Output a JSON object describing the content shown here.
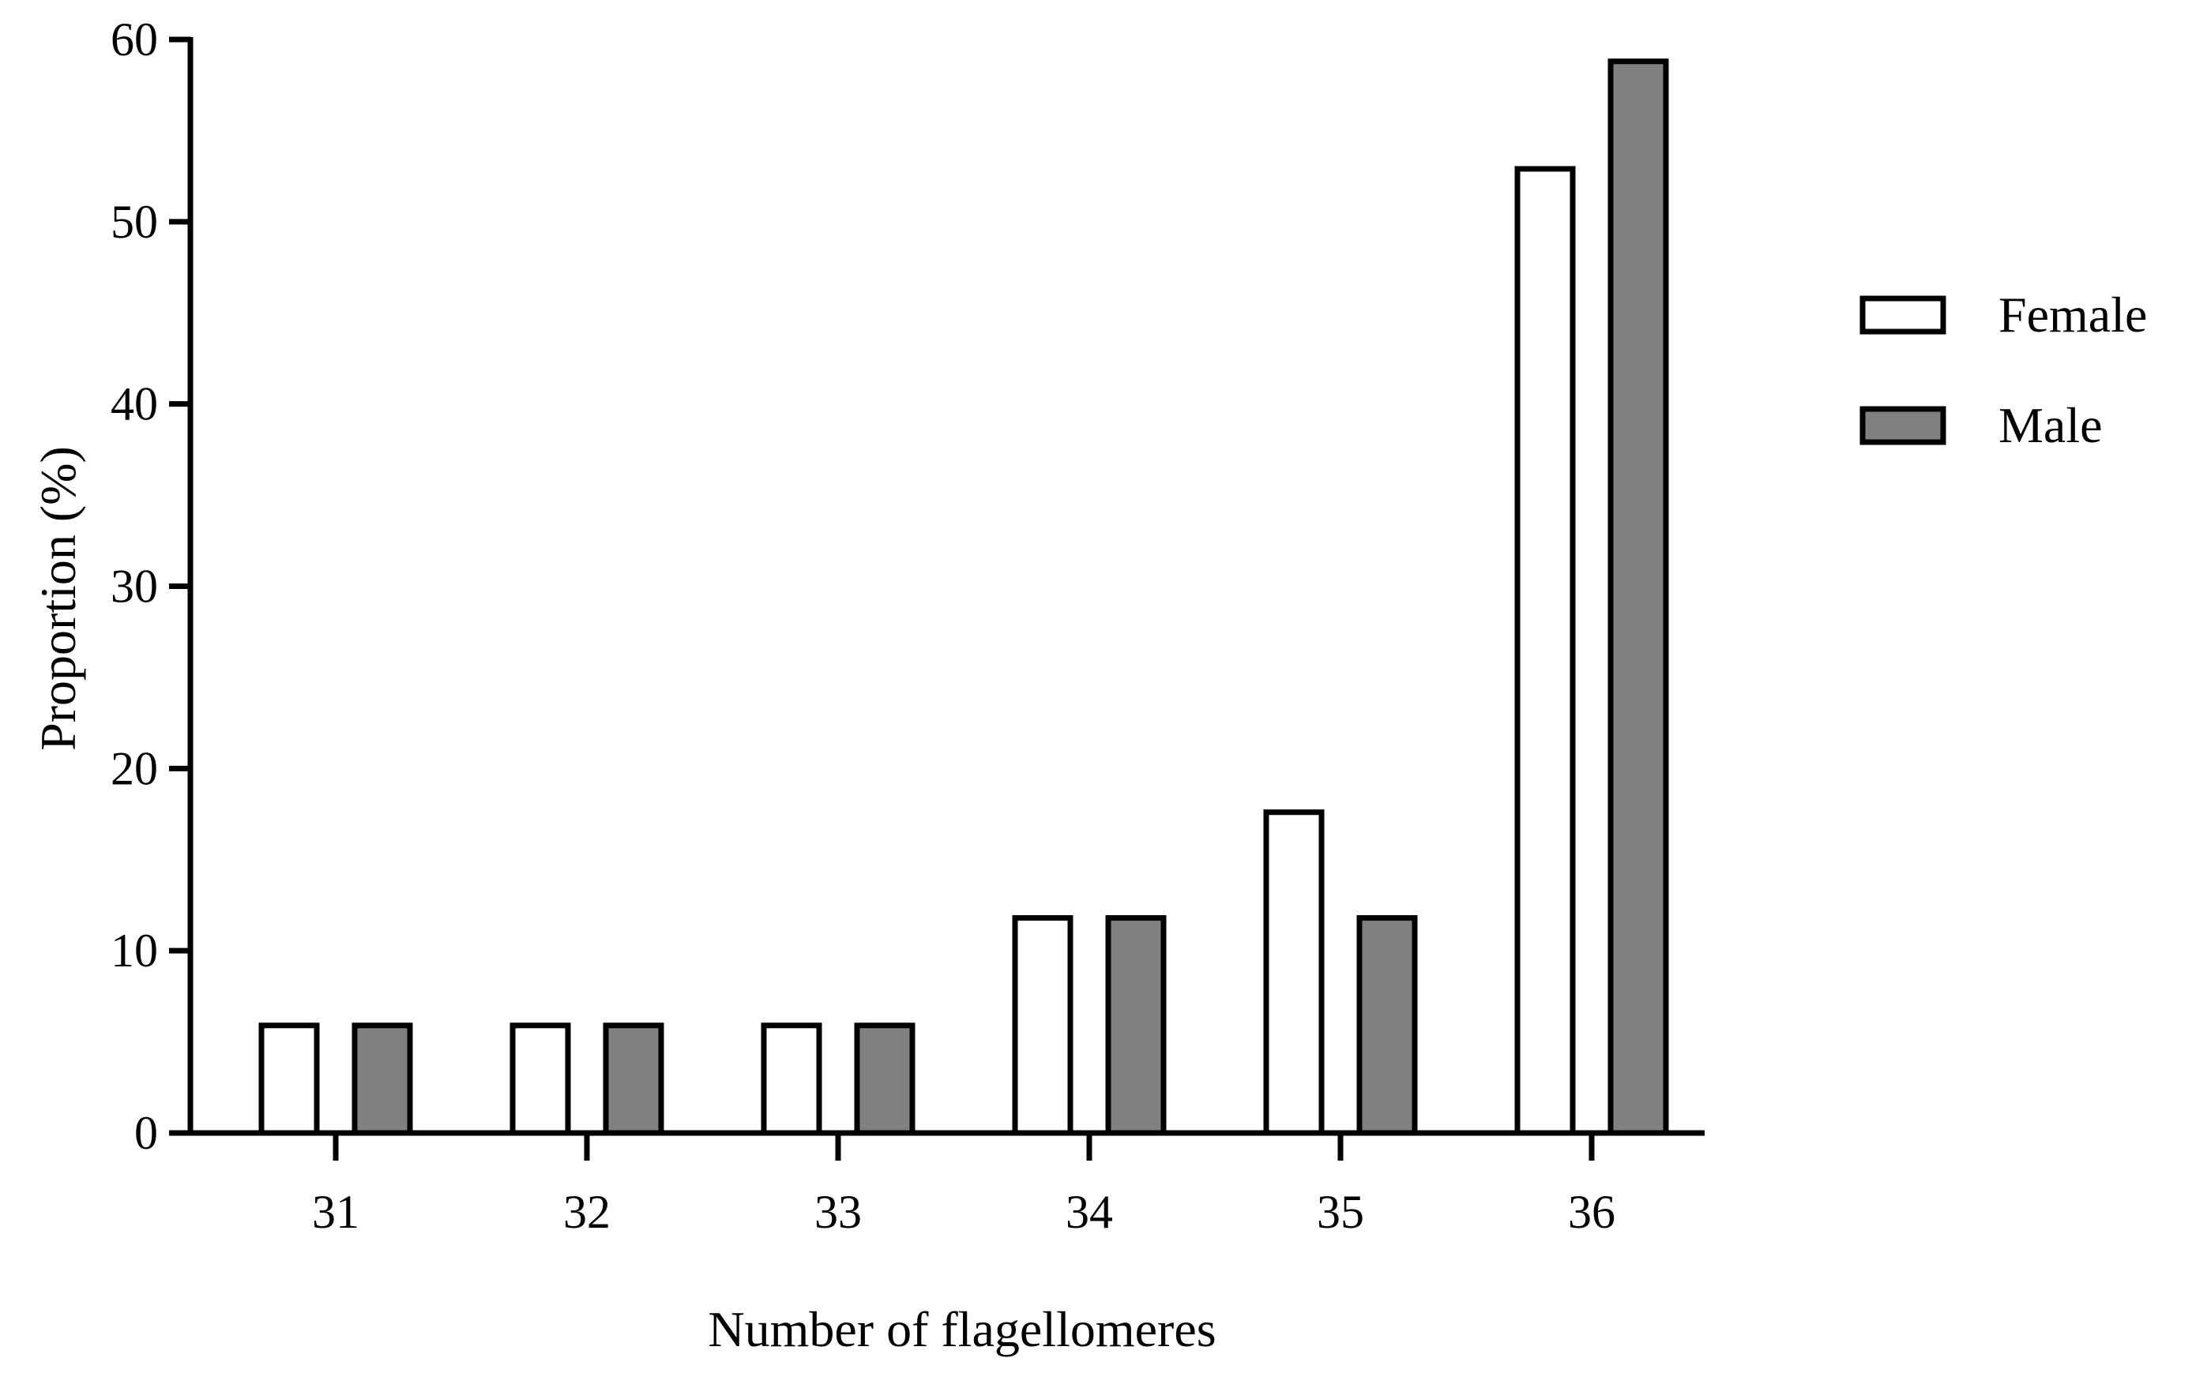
{
  "chart_data": {
    "type": "bar",
    "title": "",
    "xlabel": "Number of flagellomeres",
    "ylabel": "Proportion (%)",
    "categories": [
      "31",
      "32",
      "33",
      "34",
      "35",
      "36"
    ],
    "series": [
      {
        "name": "Female",
        "values": [
          5.9,
          5.9,
          5.9,
          11.8,
          17.6,
          52.9
        ],
        "fill": "#ffffff"
      },
      {
        "name": "Male",
        "values": [
          5.9,
          5.9,
          5.9,
          11.8,
          11.8,
          58.8
        ],
        "fill": "#808080"
      }
    ],
    "ylim": [
      0,
      60
    ],
    "yticks": [
      "0",
      "10",
      "20",
      "30",
      "40",
      "50",
      "60"
    ],
    "grid": false,
    "legend_position": "right",
    "colors": {
      "stroke": "#000000",
      "female": "#ffffff",
      "male": "#808080"
    }
  }
}
